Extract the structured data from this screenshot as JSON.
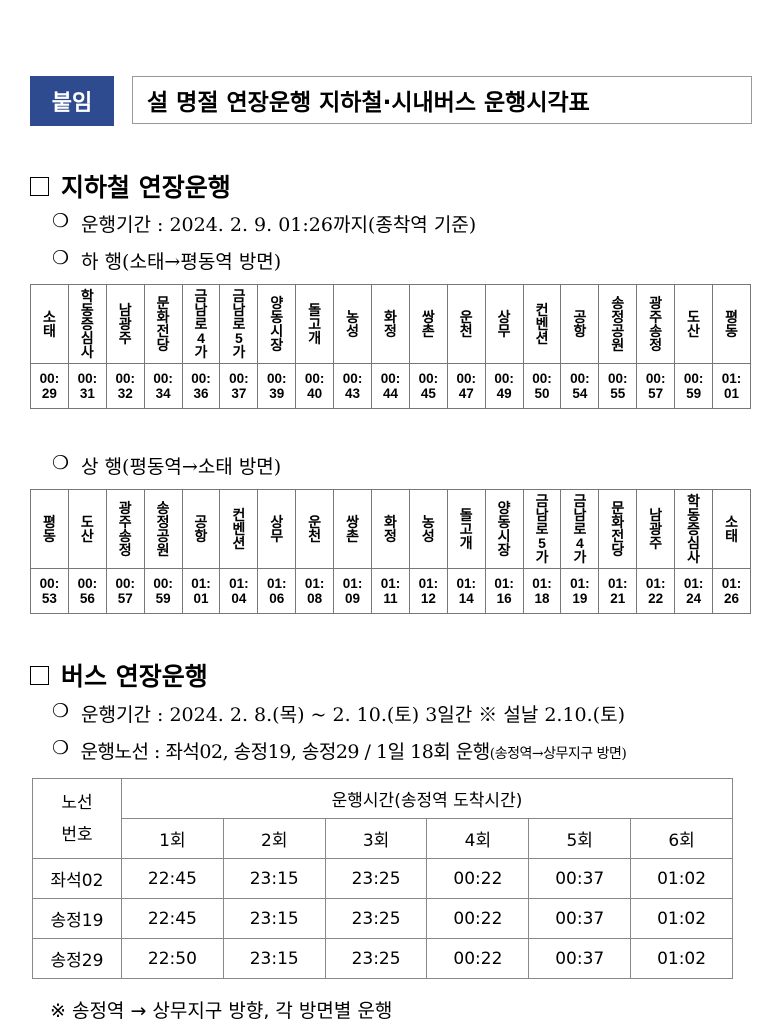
{
  "header": {
    "badge": "붙임",
    "title": "설 명절 연장운행 지하철·시내버스 운행시각표"
  },
  "subway": {
    "title": "지하철 연장운행",
    "period_label": "운행기간 : 2024. 2. 9. 01:26까지(종착역 기준)",
    "down": {
      "label": "하 행(소태→평동역 방면)",
      "stations": [
        "소태",
        "학동증심사",
        "남광주",
        "문화전당",
        "금남로4가",
        "금남로5가",
        "양동시장",
        "돌고개",
        "농성",
        "화정",
        "쌍촌",
        "운천",
        "상무",
        "컨벤션",
        "공항",
        "송정공원",
        "광주송정",
        "도산",
        "평동"
      ],
      "times": [
        "00:29",
        "00:31",
        "00:32",
        "00:34",
        "00:36",
        "00:37",
        "00:39",
        "00:40",
        "00:43",
        "00:44",
        "00:45",
        "00:47",
        "00:49",
        "00:50",
        "00:54",
        "00:55",
        "00:57",
        "00:59",
        "01:01"
      ]
    },
    "up": {
      "label": "상 행(평동역→소태 방면)",
      "stations": [
        "평동",
        "도산",
        "광주송정",
        "송정공원",
        "공항",
        "컨벤션",
        "상무",
        "운천",
        "쌍촌",
        "화정",
        "농성",
        "돌고개",
        "양동시장",
        "금남로5가",
        "금남로4가",
        "문화전당",
        "남광주",
        "학동증심사",
        "소태"
      ],
      "times": [
        "00:53",
        "00:56",
        "00:57",
        "00:59",
        "01:01",
        "01:04",
        "01:06",
        "01:08",
        "01:09",
        "01:11",
        "01:12",
        "01:14",
        "01:16",
        "01:18",
        "01:19",
        "01:21",
        "01:22",
        "01:24",
        "01:26"
      ]
    }
  },
  "bus": {
    "title": "버스 연장운행",
    "period_label": "운행기간 : 2024. 2. 8.(목) ~ 2. 10.(토) 3일간 ※ 설날 2.10.(토)",
    "route_label": "운행노선 : 좌석02, 송정19, 송정29 / 1일 18회 운행",
    "route_note": "(송정역→상무지구 방면)",
    "table": {
      "corner": "노선\n번호",
      "group_header": "운행시간(송정역 도착시간)",
      "columns": [
        "1회",
        "2회",
        "3회",
        "4회",
        "5회",
        "6회"
      ],
      "rows": [
        {
          "route": "좌석02",
          "times": [
            "22:45",
            "23:15",
            "23:25",
            "00:22",
            "00:37",
            "01:02"
          ]
        },
        {
          "route": "송정19",
          "times": [
            "22:45",
            "23:15",
            "23:25",
            "00:22",
            "00:37",
            "01:02"
          ]
        },
        {
          "route": "송정29",
          "times": [
            "22:50",
            "23:15",
            "23:25",
            "00:22",
            "00:37",
            "01:02"
          ]
        }
      ]
    },
    "footnote": "※ 송정역 → 상무지구 방향, 각 방면별 운행"
  }
}
